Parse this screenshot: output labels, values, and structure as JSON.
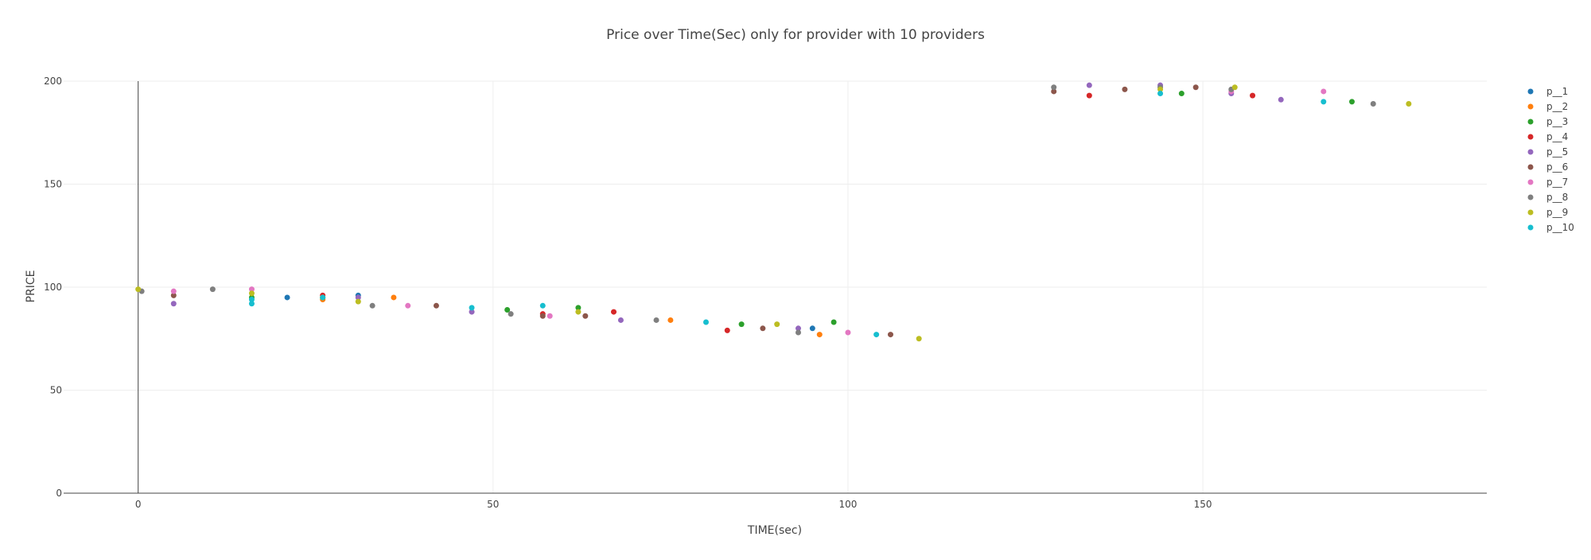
{
  "chart_data": {
    "type": "scatter",
    "title": "Price over Time(Sec) only for provider with 10 providers",
    "xlabel": "TIME(sec)",
    "ylabel": "PRICE",
    "xlim": [
      -10.5,
      190
    ],
    "ylim": [
      0,
      200
    ],
    "x_ticks": [
      0,
      50,
      100,
      150
    ],
    "y_ticks": [
      0,
      50,
      100,
      150,
      200
    ],
    "grid": true,
    "legend_position": "right",
    "series": [
      {
        "name": "p__1",
        "color": "#1f77b4",
        "points": [
          [
            21,
            95
          ],
          [
            31,
            96
          ],
          [
            95,
            80
          ]
        ]
      },
      {
        "name": "p__2",
        "color": "#ff7f0e",
        "points": [
          [
            26,
            94
          ],
          [
            36,
            95
          ],
          [
            75,
            84
          ],
          [
            96,
            77
          ]
        ]
      },
      {
        "name": "p__3",
        "color": "#2ca02c",
        "points": [
          [
            16,
            95
          ],
          [
            26,
            95
          ],
          [
            52,
            89
          ],
          [
            62,
            90
          ],
          [
            85,
            82
          ],
          [
            98,
            83
          ],
          [
            147,
            194
          ],
          [
            171,
            190
          ]
        ]
      },
      {
        "name": "p__4",
        "color": "#d62728",
        "points": [
          [
            26,
            96
          ],
          [
            57,
            87
          ],
          [
            67,
            88
          ],
          [
            83,
            79
          ],
          [
            134,
            193
          ],
          [
            157,
            193
          ]
        ]
      },
      {
        "name": "p__5",
        "color": "#9467bd",
        "points": [
          [
            5,
            92
          ],
          [
            31,
            95
          ],
          [
            47,
            88
          ],
          [
            68,
            84
          ],
          [
            93,
            80
          ],
          [
            134,
            198
          ],
          [
            144,
            198
          ],
          [
            154,
            194
          ],
          [
            161,
            191
          ]
        ]
      },
      {
        "name": "p__6",
        "color": "#8c564b",
        "points": [
          [
            5,
            96
          ],
          [
            42,
            91
          ],
          [
            57,
            86
          ],
          [
            63,
            86
          ],
          [
            88,
            80
          ],
          [
            106,
            77
          ],
          [
            129,
            195
          ],
          [
            139,
            196
          ],
          [
            149,
            197
          ]
        ]
      },
      {
        "name": "p__7",
        "color": "#e377c2",
        "points": [
          [
            5,
            98
          ],
          [
            16,
            99
          ],
          [
            38,
            91
          ],
          [
            58,
            86
          ],
          [
            100,
            78
          ],
          [
            154,
            195
          ],
          [
            167,
            195
          ]
        ]
      },
      {
        "name": "p__8",
        "color": "#7f7f7f",
        "points": [
          [
            0.5,
            98
          ],
          [
            10.5,
            99
          ],
          [
            33,
            91
          ],
          [
            52.5,
            87
          ],
          [
            73,
            84
          ],
          [
            93,
            78
          ],
          [
            129,
            197
          ],
          [
            144,
            197
          ],
          [
            154,
            196
          ],
          [
            174,
            189
          ]
        ]
      },
      {
        "name": "p__9",
        "color": "#bcbd22",
        "points": [
          [
            0,
            99
          ],
          [
            16,
            97
          ],
          [
            26,
            95
          ],
          [
            31,
            93
          ],
          [
            62,
            88
          ],
          [
            90,
            82
          ],
          [
            110,
            75
          ],
          [
            144,
            196
          ],
          [
            154.5,
            197
          ],
          [
            179,
            189
          ]
        ]
      },
      {
        "name": "p__10",
        "color": "#17becf",
        "points": [
          [
            16,
            92
          ],
          [
            16,
            94
          ],
          [
            26,
            95
          ],
          [
            47,
            90
          ],
          [
            57,
            91
          ],
          [
            80,
            83
          ],
          [
            104,
            77
          ],
          [
            144,
            194
          ],
          [
            167,
            190
          ]
        ]
      }
    ]
  }
}
